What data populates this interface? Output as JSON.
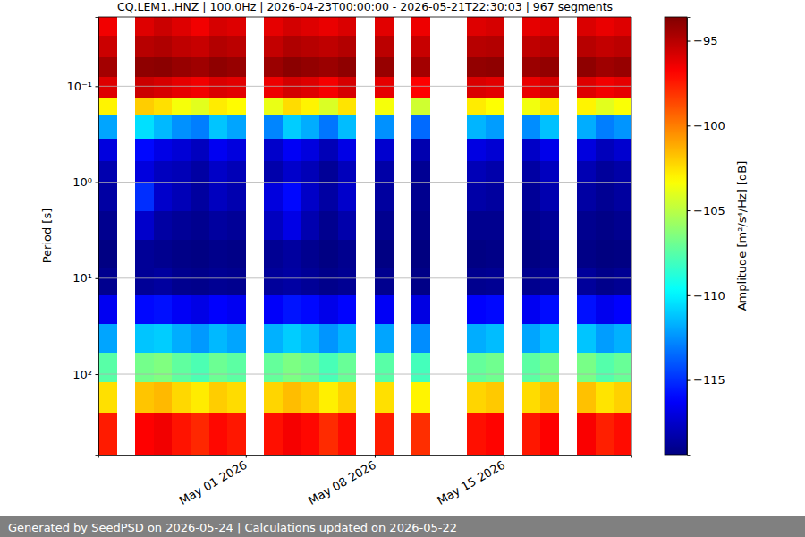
{
  "chart_data": {
    "type": "heatmap",
    "title": "CQ.LEM1..HNZ | 100.0Hz | 2026-04-23T00:00:00 - 2026-05-21T22:30:03 | 967 segments",
    "y_label": "Period [s]",
    "footer": "Generated by SeedPSD on 2026-05-24 | Calculations updated on 2026-05-22",
    "log": "y",
    "grid": "y",
    "xlim": [
      "2026-04-23T00:00:00",
      "2026-05-21T22:30:03"
    ],
    "xticks": [
      {
        "value": "2026-05-01T00:00:00",
        "label": "May 01 2026"
      },
      {
        "value": "2026-05-08T00:00:00",
        "label": "May 08 2026"
      },
      {
        "value": "2026-05-15T00:00:00",
        "label": "May 15 2026"
      }
    ],
    "ylim": [
      0.019,
      690
    ],
    "yticks": [
      {
        "value": 0.1,
        "label": "10⁻¹"
      },
      {
        "value": 1,
        "label": "10⁰"
      },
      {
        "value": 10,
        "label": "10¹"
      },
      {
        "value": 100,
        "label": "10²"
      }
    ],
    "x_bins": [
      "2026-04-23",
      "2026-04-24",
      "2026-04-25",
      "2026-04-26",
      "2026-04-27",
      "2026-04-28",
      "2026-04-29",
      "2026-04-30",
      "2026-05-01",
      "2026-05-02",
      "2026-05-03",
      "2026-05-04",
      "2026-05-05",
      "2026-05-06",
      "2026-05-07",
      "2026-05-08",
      "2026-05-09",
      "2026-05-10",
      "2026-05-11",
      "2026-05-12",
      "2026-05-13",
      "2026-05-14",
      "2026-05-15",
      "2026-05-16",
      "2026-05-17",
      "2026-05-18",
      "2026-05-19",
      "2026-05-20",
      "2026-05-21",
      "2026-05-22"
    ],
    "y_bins": [
      0.019,
      0.03,
      0.05,
      0.08,
      0.13,
      0.2,
      0.35,
      0.6,
      1,
      2,
      4,
      8,
      15,
      30,
      60,
      120,
      250,
      690
    ],
    "z": [
      [
        -96.5,
        null,
        -96,
        -95.5,
        -96,
        -96.5,
        -95.8,
        -96,
        null,
        -96.2,
        -95.7,
        -96,
        -96.3,
        -95.9,
        null,
        -96.1,
        null,
        -96.4,
        null,
        null,
        -96,
        -95.8,
        null,
        -96.2,
        -96,
        null,
        -95.9,
        -96.3,
        -96
      ],
      [
        -95.5,
        null,
        -95,
        -94.8,
        -95.2,
        -95.4,
        -94.9,
        -95.1,
        null,
        -95.3,
        -94.8,
        -95,
        -95.2,
        -94.9,
        null,
        -95.1,
        null,
        -95.4,
        null,
        null,
        -95,
        -94.9,
        null,
        -95.2,
        -95,
        null,
        -95,
        -95.3,
        -95.1
      ],
      [
        -94.5,
        null,
        -94,
        -93.9,
        -94.2,
        -94.4,
        -94,
        -94.2,
        null,
        -94.3,
        -93.9,
        -94.1,
        -94.3,
        -94,
        null,
        -94.2,
        null,
        -94.5,
        null,
        null,
        -94.1,
        -94,
        null,
        -94.3,
        -94.1,
        null,
        -94,
        -94.4,
        -94.2
      ],
      [
        -96,
        null,
        -95.5,
        -95.8,
        -96.2,
        -96.5,
        -95.9,
        -96.1,
        null,
        -96.4,
        -95.7,
        -96,
        -96.6,
        -95.8,
        null,
        -96.2,
        null,
        -96.8,
        null,
        null,
        -95.9,
        -96.1,
        null,
        -96.3,
        -95.8,
        null,
        -96,
        -96.5,
        -96.2
      ],
      [
        -103,
        null,
        -102,
        -102.5,
        -103.5,
        -104,
        -102.8,
        -103.2,
        null,
        -103.8,
        -102.4,
        -103,
        -104.2,
        -102.6,
        null,
        -103.5,
        null,
        -104.5,
        null,
        null,
        -102.8,
        -103.3,
        null,
        -103.6,
        -102.7,
        null,
        -103,
        -104,
        -103.4
      ],
      [
        -112,
        null,
        -110.5,
        -111.5,
        -112.5,
        -113,
        -111.2,
        -112,
        null,
        -112.8,
        -111,
        -111.8,
        -113.2,
        -111.4,
        null,
        -112.5,
        null,
        -113.5,
        null,
        null,
        -111.6,
        -112.2,
        null,
        -112.6,
        -111.3,
        null,
        -111.8,
        -113,
        -112.4
      ],
      [
        -117,
        null,
        -116,
        -116.8,
        -117.2,
        -117.8,
        -116.5,
        -117,
        null,
        -117.5,
        -116.4,
        -117,
        -118,
        -116.8,
        null,
        -117.4,
        null,
        -118.2,
        null,
        null,
        -116.9,
        -117.3,
        null,
        -117.6,
        -116.7,
        null,
        -117,
        -117.9,
        -117.4
      ],
      [
        -118.2,
        null,
        -117,
        -117.8,
        -118,
        -118.5,
        -117.6,
        -118,
        null,
        -118.3,
        -117.5,
        -118,
        -118.8,
        -117.9,
        null,
        -118.4,
        null,
        -118.9,
        null,
        null,
        -118,
        -118.3,
        null,
        -118.5,
        -117.8,
        null,
        -118.1,
        -118.7,
        -118.4
      ],
      [
        -118.5,
        null,
        -115,
        -117.5,
        -118,
        -118.6,
        -117.8,
        -118.2,
        null,
        -117,
        -116,
        -117.6,
        -118.5,
        -117.5,
        null,
        -118.6,
        null,
        -119,
        null,
        null,
        -118.4,
        -118.6,
        null,
        -118.8,
        -118.2,
        null,
        -118.5,
        -118.9,
        -118.6
      ],
      [
        -119,
        null,
        -117.5,
        -118.5,
        -118.8,
        -119,
        -118.6,
        -118.8,
        null,
        -117.8,
        -116.8,
        -118.2,
        -119,
        -118.3,
        null,
        -119,
        null,
        -119.2,
        null,
        null,
        -119,
        -119,
        null,
        -119.1,
        -118.8,
        null,
        -119,
        -119.2,
        -119
      ],
      [
        -119.3,
        null,
        -118.8,
        -119,
        -119.2,
        -119.3,
        -119.1,
        -119.2,
        null,
        -118.9,
        -118.6,
        -119,
        -119.3,
        -119,
        null,
        -119.3,
        null,
        -119.4,
        null,
        null,
        -119.3,
        -119.2,
        null,
        -119.3,
        -119.1,
        null,
        -119.2,
        -119.4,
        -119.3
      ],
      [
        -119,
        null,
        -118.8,
        -118.6,
        -119,
        -119.1,
        -118.9,
        -119,
        null,
        -118.7,
        -118.5,
        -118.8,
        -119.1,
        -118.9,
        null,
        -119,
        null,
        -119.2,
        null,
        null,
        -119,
        -118.9,
        null,
        -119,
        -118.8,
        null,
        -118.7,
        -119.1,
        -118.9
      ],
      [
        -116.5,
        null,
        -116,
        -115.8,
        -116.4,
        -116.8,
        -116.2,
        -116.5,
        null,
        -116.3,
        -115.7,
        -116,
        -116.7,
        -116.1,
        null,
        -116.4,
        null,
        -116.9,
        null,
        null,
        -116.2,
        -116,
        null,
        -116.5,
        -115.9,
        null,
        -115.8,
        -116.6,
        -116.2
      ],
      [
        -112,
        null,
        -111.2,
        -111,
        -111.8,
        -112.3,
        -111.5,
        -112,
        null,
        -111.7,
        -111,
        -111.5,
        -112.4,
        -111.6,
        null,
        -112,
        null,
        -112.6,
        null,
        null,
        -111.8,
        -111.4,
        null,
        -112,
        -111.3,
        null,
        -111.2,
        -112.2,
        -111.7
      ],
      [
        -107.5,
        null,
        -106.8,
        -106.5,
        -107.3,
        -107.8,
        -107,
        -107.4,
        null,
        -107.2,
        -106.6,
        -107,
        -107.9,
        -107.1,
        null,
        -107.5,
        null,
        -108,
        null,
        null,
        -107.2,
        -106.9,
        null,
        -107.4,
        -106.8,
        null,
        -106.7,
        -107.6,
        -107.1
      ],
      [
        -102.5,
        null,
        -101.8,
        -101.5,
        -102.3,
        -102.8,
        -102,
        -102.4,
        null,
        -102.2,
        -101.6,
        -102,
        -102.9,
        -102.1,
        null,
        -102.5,
        null,
        -103,
        null,
        null,
        -102.2,
        -101.9,
        null,
        -102.4,
        -101.8,
        null,
        -101.7,
        -102.6,
        -102.1
      ],
      [
        -97.5,
        null,
        -96.8,
        -96.5,
        -97.3,
        -97.8,
        -97,
        -97.4,
        null,
        -97.2,
        -96.6,
        -97,
        -97.9,
        -97.1,
        null,
        -97.5,
        null,
        -98,
        null,
        null,
        -97.2,
        -96.9,
        null,
        -97.4,
        -96.8,
        null,
        -96.7,
        -97.6,
        -97.1
      ]
    ],
    "colorbar": {
      "label": "Amplitude [m²/s⁴/Hz] [dB]",
      "range": [
        -119.4,
        -93.6
      ],
      "ticks": [
        {
          "value": -95,
          "label": "−95"
        },
        {
          "value": -100,
          "label": "−100"
        },
        {
          "value": -105,
          "label": "−105"
        },
        {
          "value": -110,
          "label": "−110"
        },
        {
          "value": -115,
          "label": "−115"
        }
      ]
    }
  }
}
